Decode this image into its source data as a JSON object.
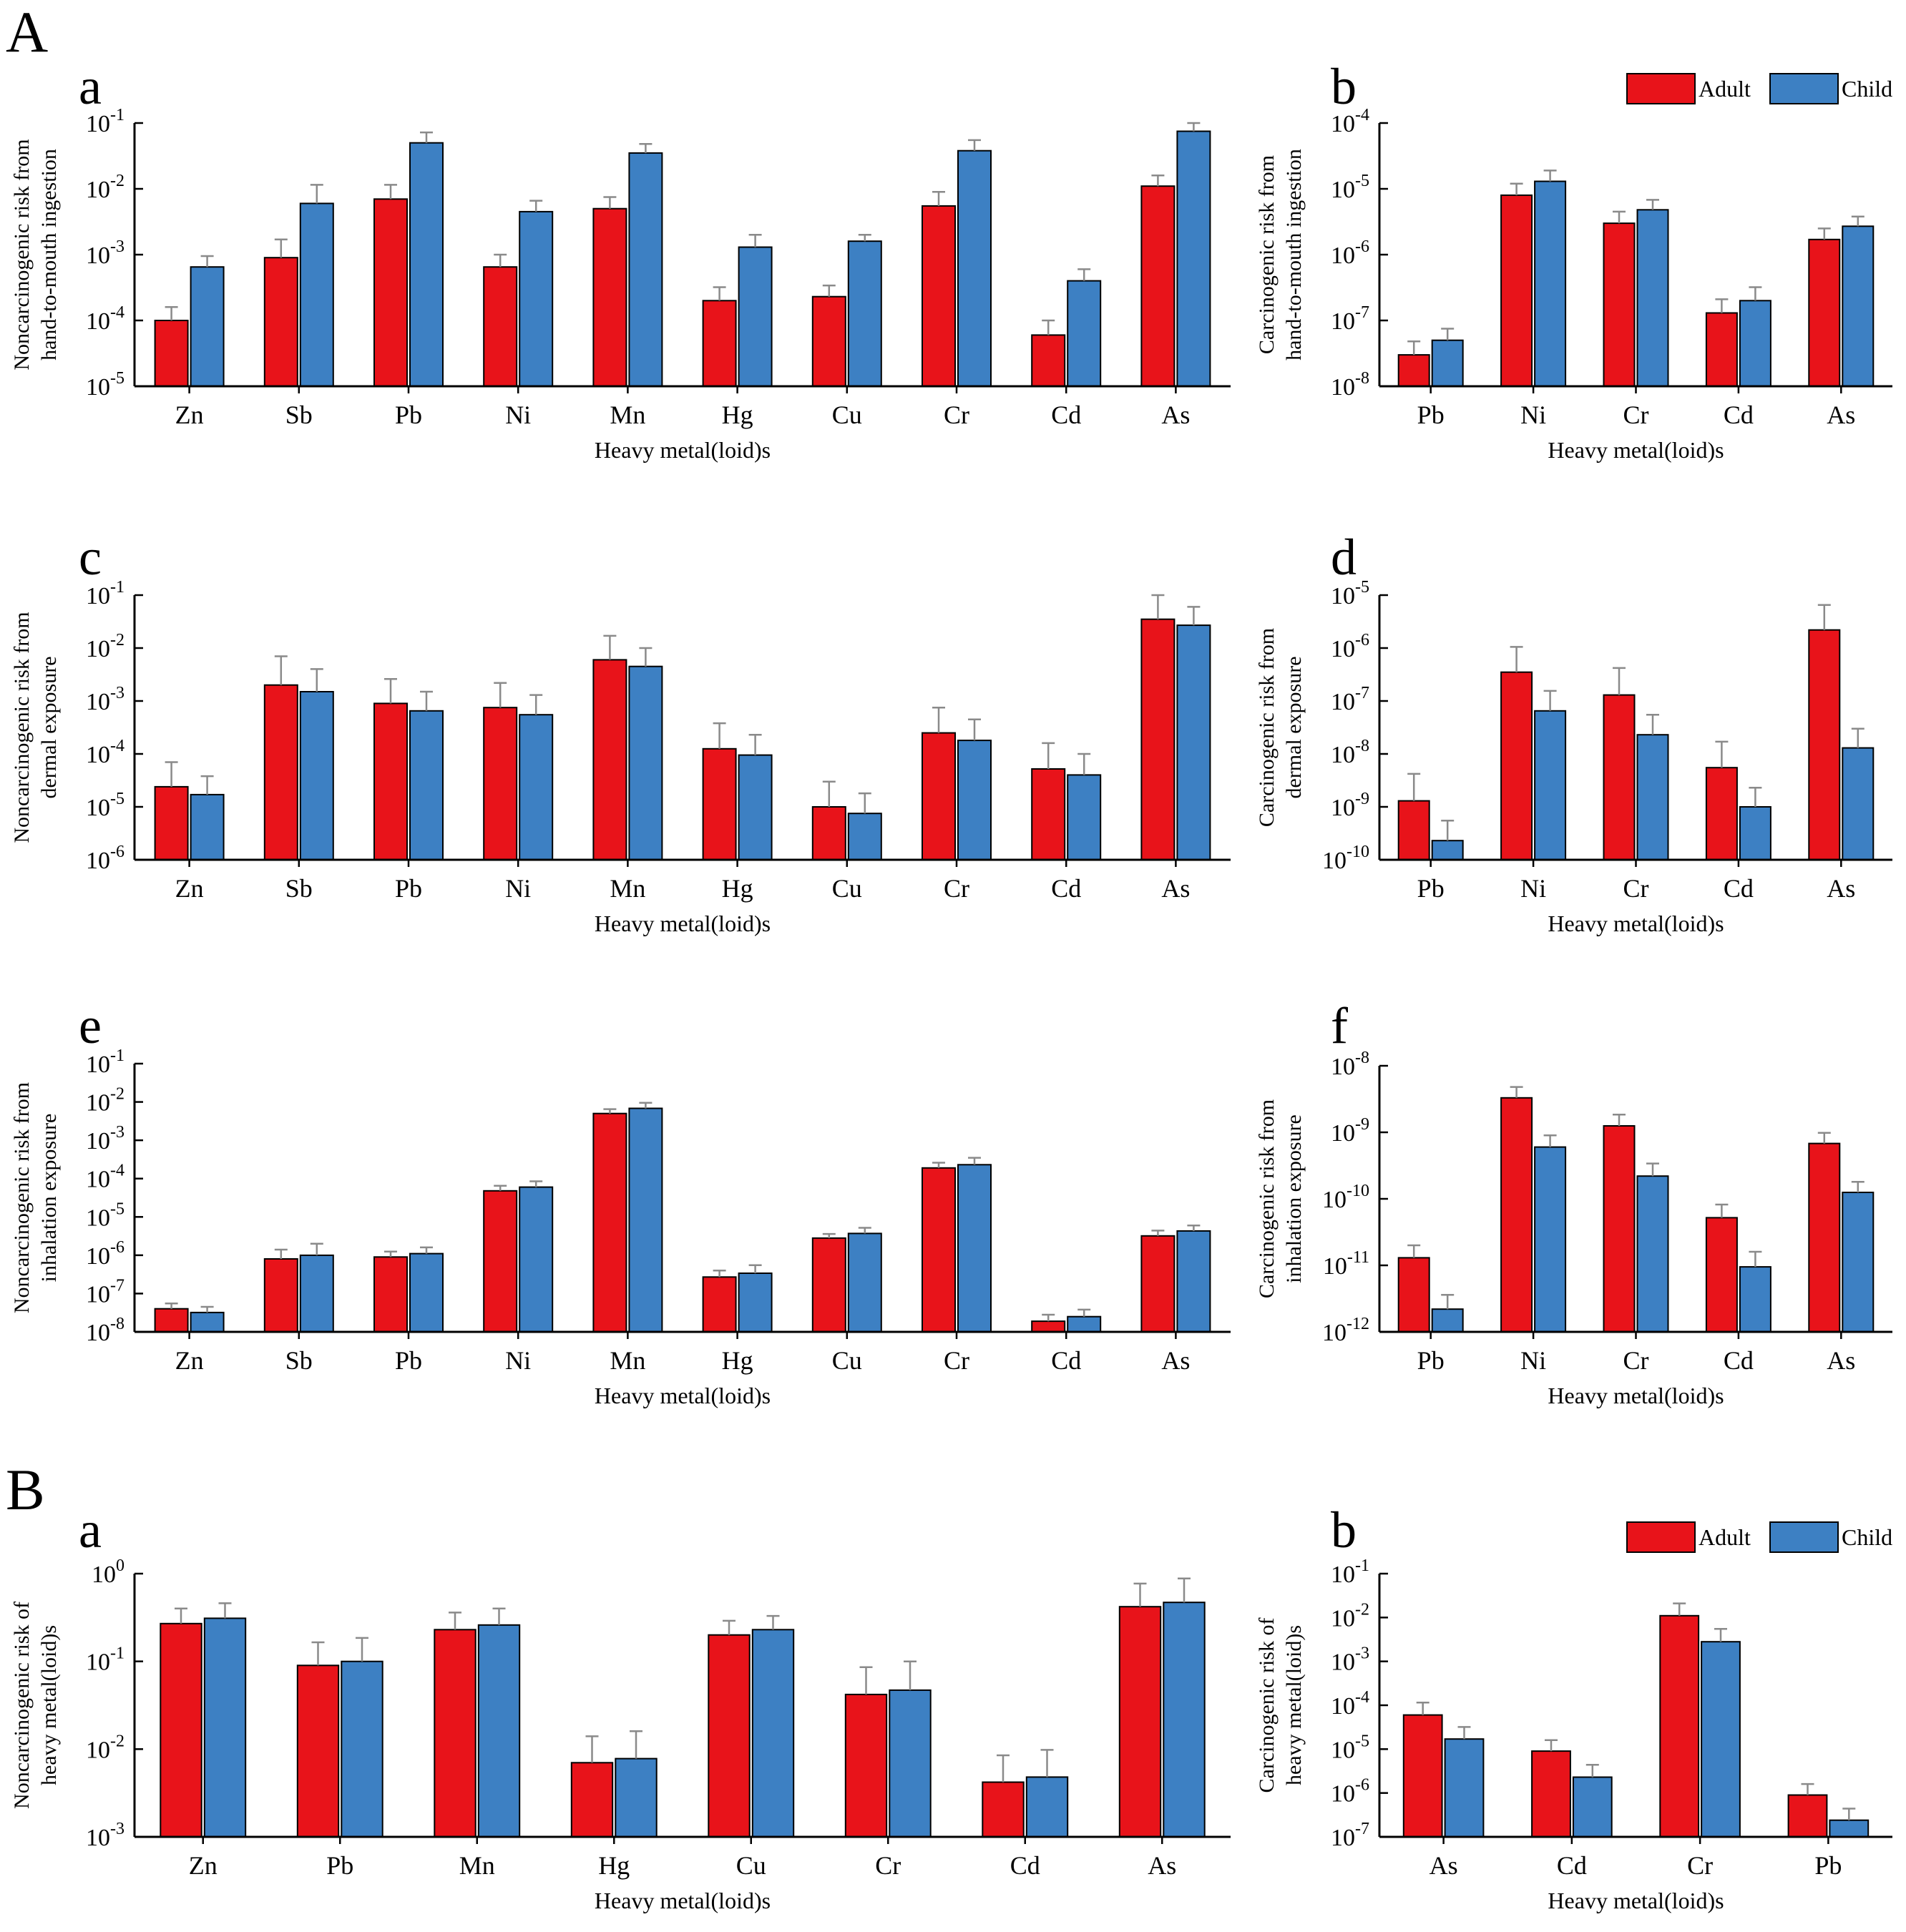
{
  "section_labels": [
    "A",
    "B"
  ],
  "legend": {
    "series": [
      "Adult",
      "Child"
    ]
  },
  "colors": {
    "adult": "#e8131a",
    "child": "#3d80c3",
    "axis": "#000000",
    "error": "#8a8a8a"
  },
  "chart_data": [
    {
      "id": "A-a",
      "section": "A",
      "panel_label": "a",
      "type": "bar",
      "scale": "log",
      "ylabel": [
        "Noncarcinogenic risk from",
        "hand-to-mouth ingestion"
      ],
      "xlabel": "Heavy metal(loid)s",
      "ytick_exponents": [
        -5,
        -4,
        -3,
        -2,
        -1
      ],
      "categories": [
        "Zn",
        "Sb",
        "Pb",
        "Ni",
        "Mn",
        "Hg",
        "Cu",
        "Cr",
        "Cd",
        "As"
      ],
      "series": [
        {
          "name": "Adult",
          "values": [
            0.0001,
            0.0009,
            0.007,
            0.00065,
            0.005,
            0.0002,
            0.00023,
            0.0055,
            6e-05,
            0.011
          ],
          "err_top": [
            0.00016,
            0.0017,
            0.0115,
            0.001,
            0.0075,
            0.00032,
            0.00034,
            0.009,
            0.0001,
            0.016
          ]
        },
        {
          "name": "Child",
          "values": [
            0.00065,
            0.006,
            0.05,
            0.0045,
            0.035,
            0.0013,
            0.0016,
            0.038,
            0.0004,
            0.075
          ],
          "err_top": [
            0.00095,
            0.0115,
            0.072,
            0.0066,
            0.048,
            0.002,
            0.002,
            0.055,
            0.0006,
            0.1
          ]
        }
      ]
    },
    {
      "id": "A-b",
      "section": "A",
      "panel_label": "b",
      "type": "bar",
      "scale": "log",
      "ylabel": [
        "Carcinogenic risk from",
        "hand-to-mouth ingestion"
      ],
      "xlabel": "Heavy metal(loid)s",
      "ytick_exponents": [
        -8,
        -7,
        -6,
        -5,
        -4
      ],
      "categories": [
        "Pb",
        "Ni",
        "Cr",
        "Cd",
        "As"
      ],
      "series": [
        {
          "name": "Adult",
          "values": [
            3e-08,
            8e-06,
            3e-06,
            1.3e-07,
            1.7e-06
          ],
          "err_top": [
            4.8e-08,
            1.2e-05,
            4.5e-06,
            2.1e-07,
            2.5e-06
          ]
        },
        {
          "name": "Child",
          "values": [
            5e-08,
            1.3e-05,
            4.8e-06,
            2e-07,
            2.7e-06
          ],
          "err_top": [
            7.5e-08,
            1.9e-05,
            6.8e-06,
            3.2e-07,
            3.8e-06
          ]
        }
      ]
    },
    {
      "id": "A-c",
      "section": "A",
      "panel_label": "c",
      "type": "bar",
      "scale": "log",
      "ylabel": [
        "Noncarcinogenic risk from",
        "dermal exposure"
      ],
      "xlabel": "Heavy metal(loid)s",
      "ytick_exponents": [
        -6,
        -5,
        -4,
        -3,
        -2,
        -1
      ],
      "categories": [
        "Zn",
        "Sb",
        "Pb",
        "Ni",
        "Mn",
        "Hg",
        "Cu",
        "Cr",
        "Cd",
        "As"
      ],
      "series": [
        {
          "name": "Adult",
          "values": [
            2.4e-05,
            0.002,
            0.0009,
            0.00075,
            0.006,
            0.000125,
            1e-05,
            0.00025,
            5.2e-05,
            0.035
          ],
          "err_top": [
            7e-05,
            0.007,
            0.0026,
            0.0022,
            0.017,
            0.00038,
            3e-05,
            0.00075,
            0.00016,
            0.1
          ]
        },
        {
          "name": "Child",
          "values": [
            1.7e-05,
            0.0015,
            0.00065,
            0.00055,
            0.0045,
            9.5e-05,
            7.5e-06,
            0.00018,
            4e-05,
            0.027
          ],
          "err_top": [
            3.8e-05,
            0.004,
            0.0015,
            0.0013,
            0.01,
            0.00023,
            1.8e-05,
            0.00045,
            0.0001,
            0.06
          ]
        }
      ]
    },
    {
      "id": "A-d",
      "section": "A",
      "panel_label": "d",
      "type": "bar",
      "scale": "log",
      "ylabel": [
        "Carcinogenic risk from",
        "dermal exposure"
      ],
      "xlabel": "Heavy metal(loid)s",
      "ytick_exponents": [
        -10,
        -9,
        -8,
        -7,
        -6,
        -5
      ],
      "categories": [
        "Pb",
        "Ni",
        "Cr",
        "Cd",
        "As"
      ],
      "series": [
        {
          "name": "Adult",
          "values": [
            1.3e-09,
            3.5e-07,
            1.3e-07,
            5.5e-09,
            2.2e-06
          ],
          "err_top": [
            4.2e-09,
            1.05e-06,
            4.2e-07,
            1.7e-08,
            6.5e-06
          ]
        },
        {
          "name": "Child",
          "values": [
            2.3e-10,
            6.5e-08,
            2.3e-08,
            1e-09,
            1.3e-08
          ],
          "err_top": [
            5.5e-10,
            1.55e-07,
            5.5e-08,
            2.3e-09,
            3e-08
          ]
        }
      ]
    },
    {
      "id": "A-e",
      "section": "A",
      "panel_label": "e",
      "type": "bar",
      "scale": "log",
      "ylabel": [
        "Noncarcinogenic risk from",
        "inhalation  exposure"
      ],
      "xlabel": "Heavy metal(loid)s",
      "ytick_exponents": [
        -8,
        -7,
        -6,
        -5,
        -4,
        -3,
        -2,
        -1
      ],
      "categories": [
        "Zn",
        "Sb",
        "Pb",
        "Ni",
        "Mn",
        "Hg",
        "Cu",
        "Cr",
        "Cd",
        "As"
      ],
      "series": [
        {
          "name": "Adult",
          "values": [
            4e-08,
            8e-07,
            9e-07,
            4.8e-05,
            0.005,
            2.7e-07,
            2.8e-06,
            0.00019,
            1.9e-08,
            3.2e-06
          ],
          "err_top": [
            5.5e-08,
            1.4e-06,
            1.25e-06,
            6.5e-05,
            0.0065,
            4e-07,
            3.6e-06,
            0.00026,
            2.8e-08,
            4.4e-06
          ]
        },
        {
          "name": "Child",
          "values": [
            3.2e-08,
            1e-06,
            1.1e-06,
            6e-05,
            0.0068,
            3.4e-07,
            3.7e-06,
            0.00023,
            2.5e-08,
            4.3e-06
          ],
          "err_top": [
            4.5e-08,
            2e-06,
            1.6e-06,
            8.5e-05,
            0.0095,
            5.5e-07,
            5.2e-06,
            0.00035,
            3.8e-08,
            6e-06
          ]
        }
      ]
    },
    {
      "id": "A-f",
      "section": "A",
      "panel_label": "f",
      "type": "bar",
      "scale": "log",
      "ylabel": [
        "Carcinogenic risk from",
        "inhalation exposure"
      ],
      "xlabel": "Heavy metal(loid)s",
      "ytick_exponents": [
        -12,
        -11,
        -10,
        -9,
        -8
      ],
      "categories": [
        "Pb",
        "Ni",
        "Cr",
        "Cd",
        "As"
      ],
      "series": [
        {
          "name": "Adult",
          "values": [
            1.3e-11,
            3.3e-09,
            1.25e-09,
            5.2e-11,
            6.8e-10
          ],
          "err_top": [
            2e-11,
            4.8e-09,
            1.85e-09,
            8.2e-11,
            9.8e-10
          ]
        },
        {
          "name": "Child",
          "values": [
            2.2e-12,
            6e-10,
            2.2e-10,
            9.5e-12,
            1.25e-10
          ],
          "err_top": [
            3.6e-12,
            9e-10,
            3.4e-10,
            1.6e-11,
            1.8e-10
          ]
        }
      ]
    },
    {
      "id": "B-a",
      "section": "B",
      "panel_label": "a",
      "type": "bar",
      "scale": "log",
      "ylabel": [
        "Noncarcinogenic risk of",
        "heavy metal(loid)s"
      ],
      "xlabel": "Heavy metal(loid)s",
      "ytick_exponents": [
        -3,
        -2,
        -1,
        0
      ],
      "categories": [
        "Zn",
        "Pb",
        "Mn",
        "Hg",
        "Cu",
        "Cr",
        "Cd",
        "As"
      ],
      "series": [
        {
          "name": "Adult",
          "values": [
            0.27,
            0.09,
            0.23,
            0.007,
            0.2,
            0.042,
            0.0042,
            0.42
          ],
          "err_top": [
            0.4,
            0.165,
            0.36,
            0.014,
            0.29,
            0.086,
            0.0085,
            0.77
          ]
        },
        {
          "name": "Child",
          "values": [
            0.31,
            0.1,
            0.26,
            0.0078,
            0.23,
            0.047,
            0.0048,
            0.47
          ],
          "err_top": [
            0.46,
            0.185,
            0.4,
            0.016,
            0.33,
            0.1,
            0.0098,
            0.88
          ]
        }
      ]
    },
    {
      "id": "B-b",
      "section": "B",
      "panel_label": "b",
      "type": "bar",
      "scale": "log",
      "ylabel": [
        "Carcinogenic risk of",
        "heavy metal(loid)s"
      ],
      "xlabel": "Heavy metal(loid)s",
      "ytick_exponents": [
        -7,
        -6,
        -5,
        -4,
        -3,
        -2,
        -1
      ],
      "categories": [
        "As",
        "Cd",
        "Cr",
        "Pb"
      ],
      "series": [
        {
          "name": "Adult",
          "values": [
            6e-05,
            9e-06,
            0.011,
            9e-07
          ],
          "err_top": [
            0.000115,
            1.6e-05,
            0.021,
            1.6e-06
          ]
        },
        {
          "name": "Child",
          "values": [
            1.7e-05,
            2.3e-06,
            0.0028,
            2.4e-07
          ],
          "err_top": [
            3.2e-05,
            4.4e-06,
            0.0055,
            4.4e-07
          ]
        }
      ]
    }
  ]
}
